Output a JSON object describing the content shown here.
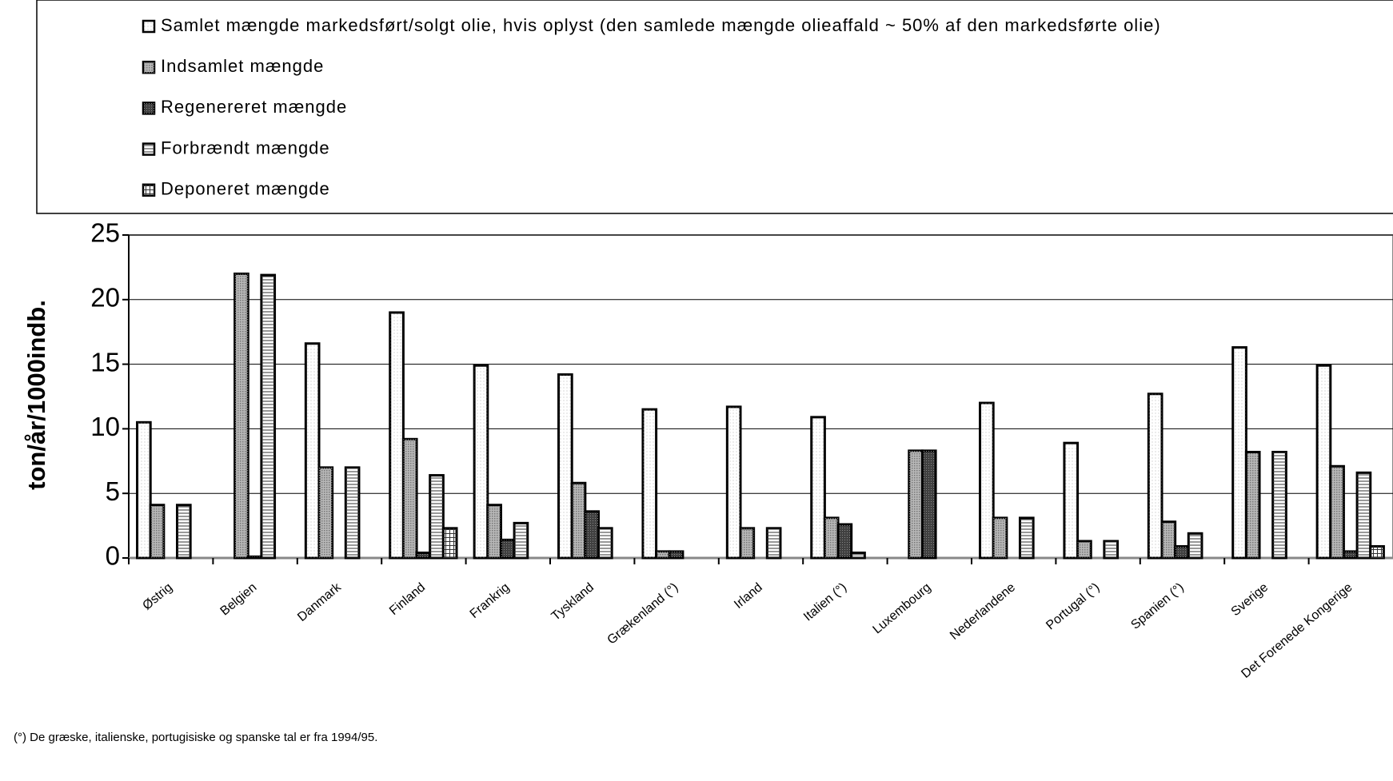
{
  "chart_data": {
    "type": "bar",
    "y_label": "ton/år/1000indb.",
    "footnote": "(°) De græske, italienske, portugisiske og spanske tal er fra 1994/95.",
    "categories": [
      "Østrig",
      "Belgien",
      "Danmark",
      "Finland",
      "Frankrig",
      "Tyskland",
      "Grækenland (°)",
      "Irland",
      "Italien (°)",
      "Luxembourg",
      "Nederlandene",
      "Portugal (°)",
      "Spanien (°)",
      "Sverige",
      "Det Forenede Kongerige"
    ],
    "series": [
      {
        "name": "Samlet mængde markedsført/solgt olie, hvis oplyst (den samlede mængde olieaffald ~ 50% af den markedsførte olie)",
        "color": "#ffffff",
        "values": [
          10.5,
          null,
          16.6,
          19.0,
          14.9,
          14.2,
          11.5,
          11.7,
          10.9,
          null,
          12.0,
          8.9,
          12.7,
          16.3,
          14.9
        ]
      },
      {
        "name": "Indsamlet mængde",
        "color": "#b8b8b8",
        "values": [
          4.1,
          22.0,
          7.0,
          9.2,
          4.1,
          5.8,
          0.5,
          2.3,
          3.1,
          8.3,
          3.1,
          1.3,
          2.8,
          8.2,
          7.1
        ]
      },
      {
        "name": "Regenereret mængde",
        "color": "#404040",
        "values": [
          null,
          0.1,
          null,
          0.4,
          1.4,
          3.6,
          0.5,
          null,
          2.6,
          8.3,
          null,
          null,
          0.9,
          null,
          0.5
        ]
      },
      {
        "name": "Forbrændt mængde",
        "color": "#ffffff",
        "values": [
          4.1,
          21.9,
          7.0,
          6.4,
          2.7,
          2.3,
          null,
          2.3,
          0.4,
          null,
          3.1,
          1.3,
          1.9,
          8.2,
          6.6
        ]
      },
      {
        "name": "Deponeret mængde",
        "color": "#ffffff",
        "values": [
          null,
          null,
          null,
          2.3,
          null,
          null,
          null,
          null,
          null,
          null,
          null,
          null,
          null,
          null,
          0.9
        ]
      }
    ],
    "ylim": [
      0,
      25
    ],
    "yticks": [
      0,
      5,
      10,
      15,
      20,
      25
    ],
    "grid": true
  }
}
